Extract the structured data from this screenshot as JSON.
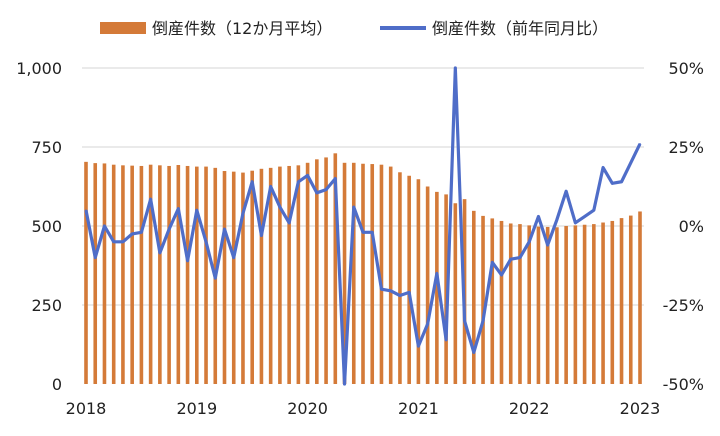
{
  "colors": {
    "bar": "#D47A38",
    "line": "#4F6DC8",
    "grid": "#D6D6D6",
    "text": "#222222"
  },
  "chart_data": {
    "type": "bar+line",
    "legend": {
      "position": "top",
      "bar_label": "倒産件数（12か月平均）",
      "line_label": "倒産件数（前年同月比）"
    },
    "y_left": {
      "range": [
        0,
        1000
      ],
      "ticks": [
        0,
        250,
        500,
        750,
        1000
      ],
      "tick_labels": [
        "0",
        "250",
        "500",
        "750",
        "1,000"
      ]
    },
    "y_right": {
      "range": [
        -50,
        50
      ],
      "ticks": [
        -50,
        -25,
        0,
        25,
        50
      ],
      "tick_labels": [
        "-50%",
        "-25%",
        "0%",
        "25%",
        "50%"
      ]
    },
    "x_axis": {
      "start": "2018-01",
      "end": "2023-01",
      "tick_labels": [
        "2018",
        "2019",
        "2020",
        "2021",
        "2022",
        "2023"
      ]
    },
    "grid": true,
    "months": [
      "2018-01",
      "2018-02",
      "2018-03",
      "2018-04",
      "2018-05",
      "2018-06",
      "2018-07",
      "2018-08",
      "2018-09",
      "2018-10",
      "2018-11",
      "2018-12",
      "2019-01",
      "2019-02",
      "2019-03",
      "2019-04",
      "2019-05",
      "2019-06",
      "2019-07",
      "2019-08",
      "2019-09",
      "2019-10",
      "2019-11",
      "2019-12",
      "2020-01",
      "2020-02",
      "2020-03",
      "2020-04",
      "2020-05",
      "2020-06",
      "2020-07",
      "2020-08",
      "2020-09",
      "2020-10",
      "2020-11",
      "2020-12",
      "2021-01",
      "2021-02",
      "2021-03",
      "2021-04",
      "2021-05",
      "2021-06",
      "2021-07",
      "2021-08",
      "2021-09",
      "2021-10",
      "2021-11",
      "2021-12",
      "2022-01",
      "2022-02",
      "2022-03",
      "2022-04",
      "2022-05",
      "2022-06",
      "2022-07",
      "2022-08",
      "2022-09",
      "2022-10",
      "2022-11",
      "2022-12",
      "2023-01"
    ],
    "series": [
      {
        "name": "倒産件数（12か月平均）",
        "kind": "bar",
        "axis": "left",
        "values": [
          703,
          699,
          698,
          694,
          692,
          691,
          690,
          694,
          692,
          690,
          693,
          690,
          688,
          688,
          684,
          674,
          672,
          669,
          675,
          681,
          684,
          688,
          690,
          692,
          700,
          711,
          717,
          730,
          700,
          700,
          697,
          696,
          694,
          688,
          670,
          659,
          648,
          625,
          608,
          600,
          572,
          585,
          548,
          532,
          524,
          516,
          508,
          506,
          502,
          498,
          497,
          496,
          500,
          502,
          504,
          506,
          511,
          516,
          525,
          533,
          546
        ]
      },
      {
        "name": "倒産件数（前年同月比）",
        "kind": "line",
        "axis": "right",
        "values": [
          5,
          -10,
          0,
          -5,
          -5,
          -2.5,
          -2,
          8.5,
          -8.5,
          -1,
          5.5,
          -11,
          5,
          -5,
          -16.5,
          -1,
          -10,
          4,
          14,
          -3,
          12.5,
          6,
          1,
          14,
          16,
          10.5,
          11.5,
          15,
          -50,
          6,
          -2,
          -2,
          -20,
          -20.5,
          -22,
          -21,
          -38,
          -31,
          -15,
          -36,
          50,
          -30,
          -40,
          -30,
          -11.5,
          -15.5,
          -10.5,
          -10,
          -5,
          3,
          -6,
          2,
          11,
          1,
          3,
          5,
          18.5,
          13.5,
          14,
          20,
          26
        ]
      }
    ]
  }
}
